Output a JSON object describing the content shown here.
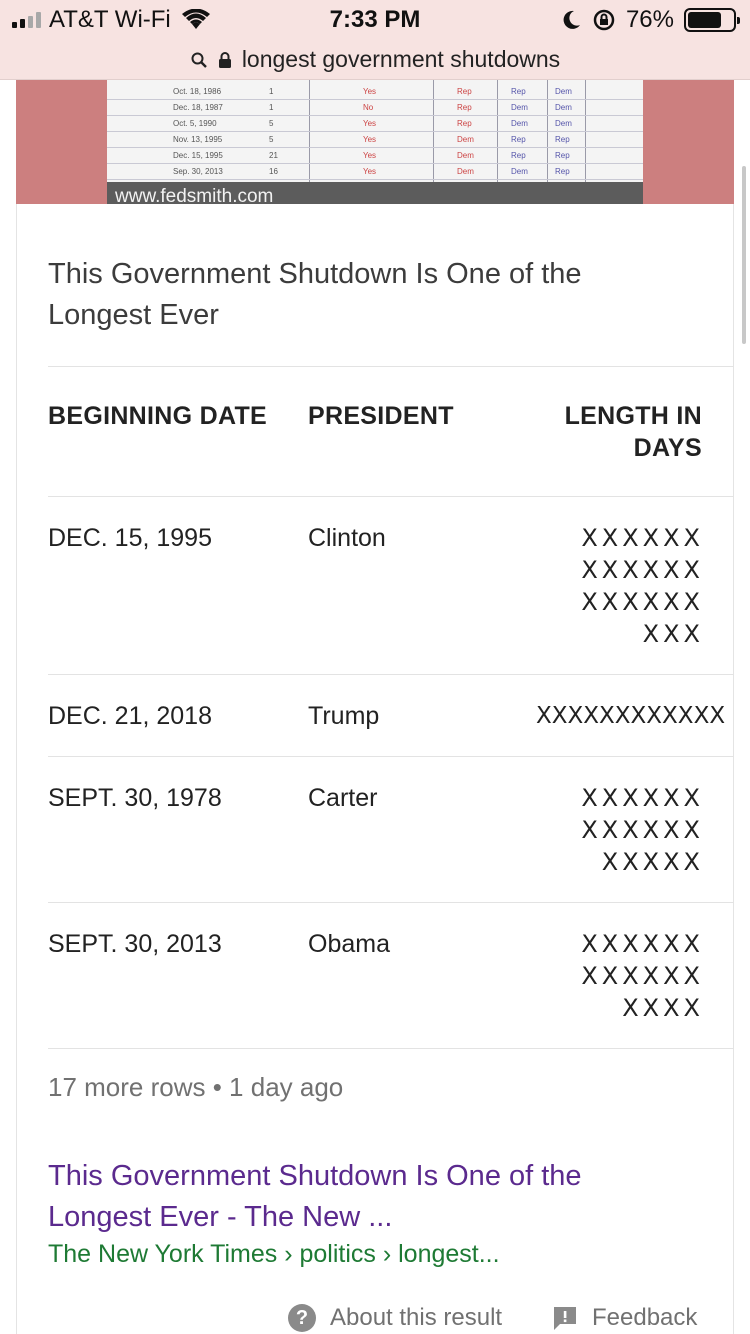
{
  "status_bar": {
    "carrier": "AT&T Wi-Fi",
    "time": "7:33 PM",
    "battery": "76%",
    "battery_level": 0.76,
    "icons": [
      "signal-icon",
      "wifi-icon",
      "moon-icon",
      "rotation-lock-icon",
      "battery-icon"
    ]
  },
  "url_bar": {
    "text": "longest government shutdowns",
    "icons": [
      "search-icon",
      "lock-icon"
    ]
  },
  "image": {
    "credit": "www.fedsmith.com",
    "thumbnail_rows": [
      {
        "date": "Oct. 18, 1986",
        "days": "1",
        "flag": "Yes",
        "c1": "Rep",
        "c2": "Rep",
        "c3": "Dem"
      },
      {
        "date": "Dec. 18, 1987",
        "days": "1",
        "flag": "No",
        "c1": "Rep",
        "c2": "Dem",
        "c3": "Dem"
      },
      {
        "date": "Oct. 5, 1990",
        "days": "5",
        "flag": "Yes",
        "c1": "Rep",
        "c2": "Dem",
        "c3": "Dem"
      },
      {
        "date": "Nov. 13, 1995",
        "days": "5",
        "flag": "Yes",
        "c1": "Dem",
        "c2": "Rep",
        "c3": "Rep"
      },
      {
        "date": "Dec. 15, 1995",
        "days": "21",
        "flag": "Yes",
        "c1": "Dem",
        "c2": "Rep",
        "c3": "Rep"
      },
      {
        "date": "Sep. 30, 2013",
        "days": "16",
        "flag": "Yes",
        "c1": "Dem",
        "c2": "Dem",
        "c3": "Rep"
      }
    ]
  },
  "snippet": {
    "title": "This Government Shutdown Is One of the Longest Ever",
    "headers": {
      "date": "BEGINNING DATE",
      "president": "PRESIDENT",
      "length": "LENGTH IN DAYS"
    },
    "rows": [
      {
        "date": "DEC. 15, 1995",
        "president": "Clinton",
        "x_lines": [
          "XXXXXX",
          "XXXXXX",
          "XXXXXX",
          "XXX"
        ]
      },
      {
        "date": "DEC. 21, 2018",
        "president": "Trump",
        "x_lines": [
          "XXXXXXXXXXXX"
        ]
      },
      {
        "date": "SEPT. 30, 1978",
        "president": "Carter",
        "x_lines": [
          "XXXXXX",
          "XXXXXX",
          "XXXXX"
        ]
      },
      {
        "date": "SEPT. 30, 2013",
        "president": "Obama",
        "x_lines": [
          "XXXXXX",
          "XXXXXX",
          "XXXX"
        ]
      }
    ],
    "more_rows": "17 more rows • 1 day ago"
  },
  "result": {
    "title": "This Government Shutdown Is One of the Longest Ever - The New ...",
    "breadcrumb": "The New York Times › politics › longest..."
  },
  "footer": {
    "about": "About this result",
    "feedback": "Feedback"
  }
}
